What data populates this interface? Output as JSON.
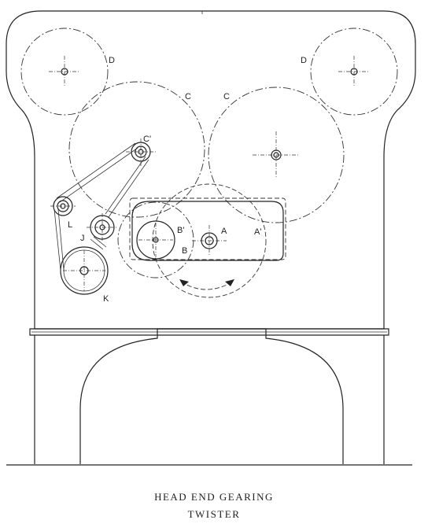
{
  "caption": {
    "line1": "HEAD END GEARING",
    "line2": "TWISTER"
  },
  "labels": {
    "d_left": "D",
    "d_right": "D",
    "c_left": "C",
    "c_right": "C",
    "c_prime": "C'",
    "a": "A",
    "a_prime": "A'",
    "b": "B",
    "b_prime": "B'",
    "j": "J",
    "k": "K",
    "l": "L"
  }
}
